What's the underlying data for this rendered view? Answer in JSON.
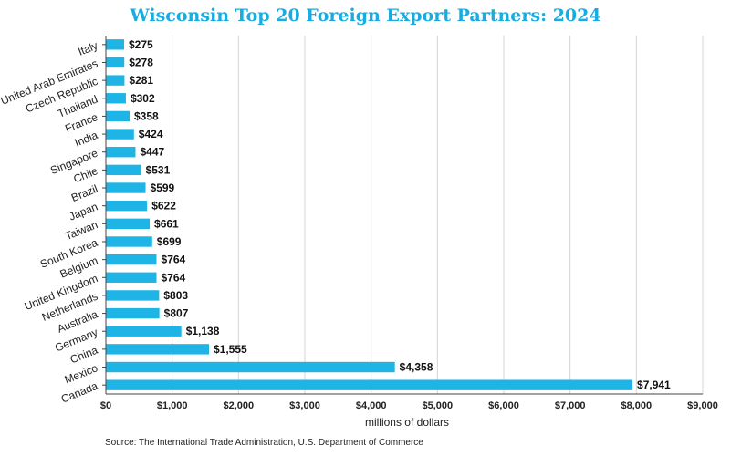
{
  "chart_data": {
    "type": "bar",
    "orientation": "horizontal",
    "title": "Wisconsin Top 20 Foreign Export Partners: 2024",
    "xlabel": "millions of dollars",
    "ylabel": "",
    "xlim": [
      0,
      9000
    ],
    "x_ticks": [
      0,
      1000,
      2000,
      3000,
      4000,
      5000,
      6000,
      7000,
      8000,
      9000
    ],
    "x_tick_labels": [
      "$0",
      "$1,000",
      "$2,000",
      "$3,000",
      "$4,000",
      "$5,000",
      "$6,000",
      "$7,000",
      "$8,000",
      "$9,000"
    ],
    "grid": true,
    "categories": [
      "Italy",
      "United Arab Emirates",
      "Czech Republic",
      "Thailand",
      "France",
      "India",
      "Singapore",
      "Chile",
      "Brazil",
      "Japan",
      "Taiwan",
      "South Korea",
      "Belgium",
      "United Kingdom",
      "Netherlands",
      "Australia",
      "Germany",
      "China",
      "Mexico",
      "Canada"
    ],
    "values": [
      275,
      278,
      281,
      302,
      358,
      424,
      447,
      531,
      599,
      622,
      661,
      699,
      764,
      764,
      803,
      807,
      1138,
      1555,
      4358,
      7941
    ],
    "data_labels": [
      "$275",
      "$278",
      "$281",
      "$302",
      "$358",
      "$424",
      "$447",
      "$531",
      "$599",
      "$622",
      "$661",
      "$699",
      "$764",
      "$764",
      "$803",
      "$807",
      "$1,138",
      "$1,555",
      "$4,358",
      "$7,941"
    ],
    "bar_color": "#1fb4e6"
  },
  "footer": {
    "source": "Source: The International Trade Administration, U.S. Department of Commerce"
  }
}
